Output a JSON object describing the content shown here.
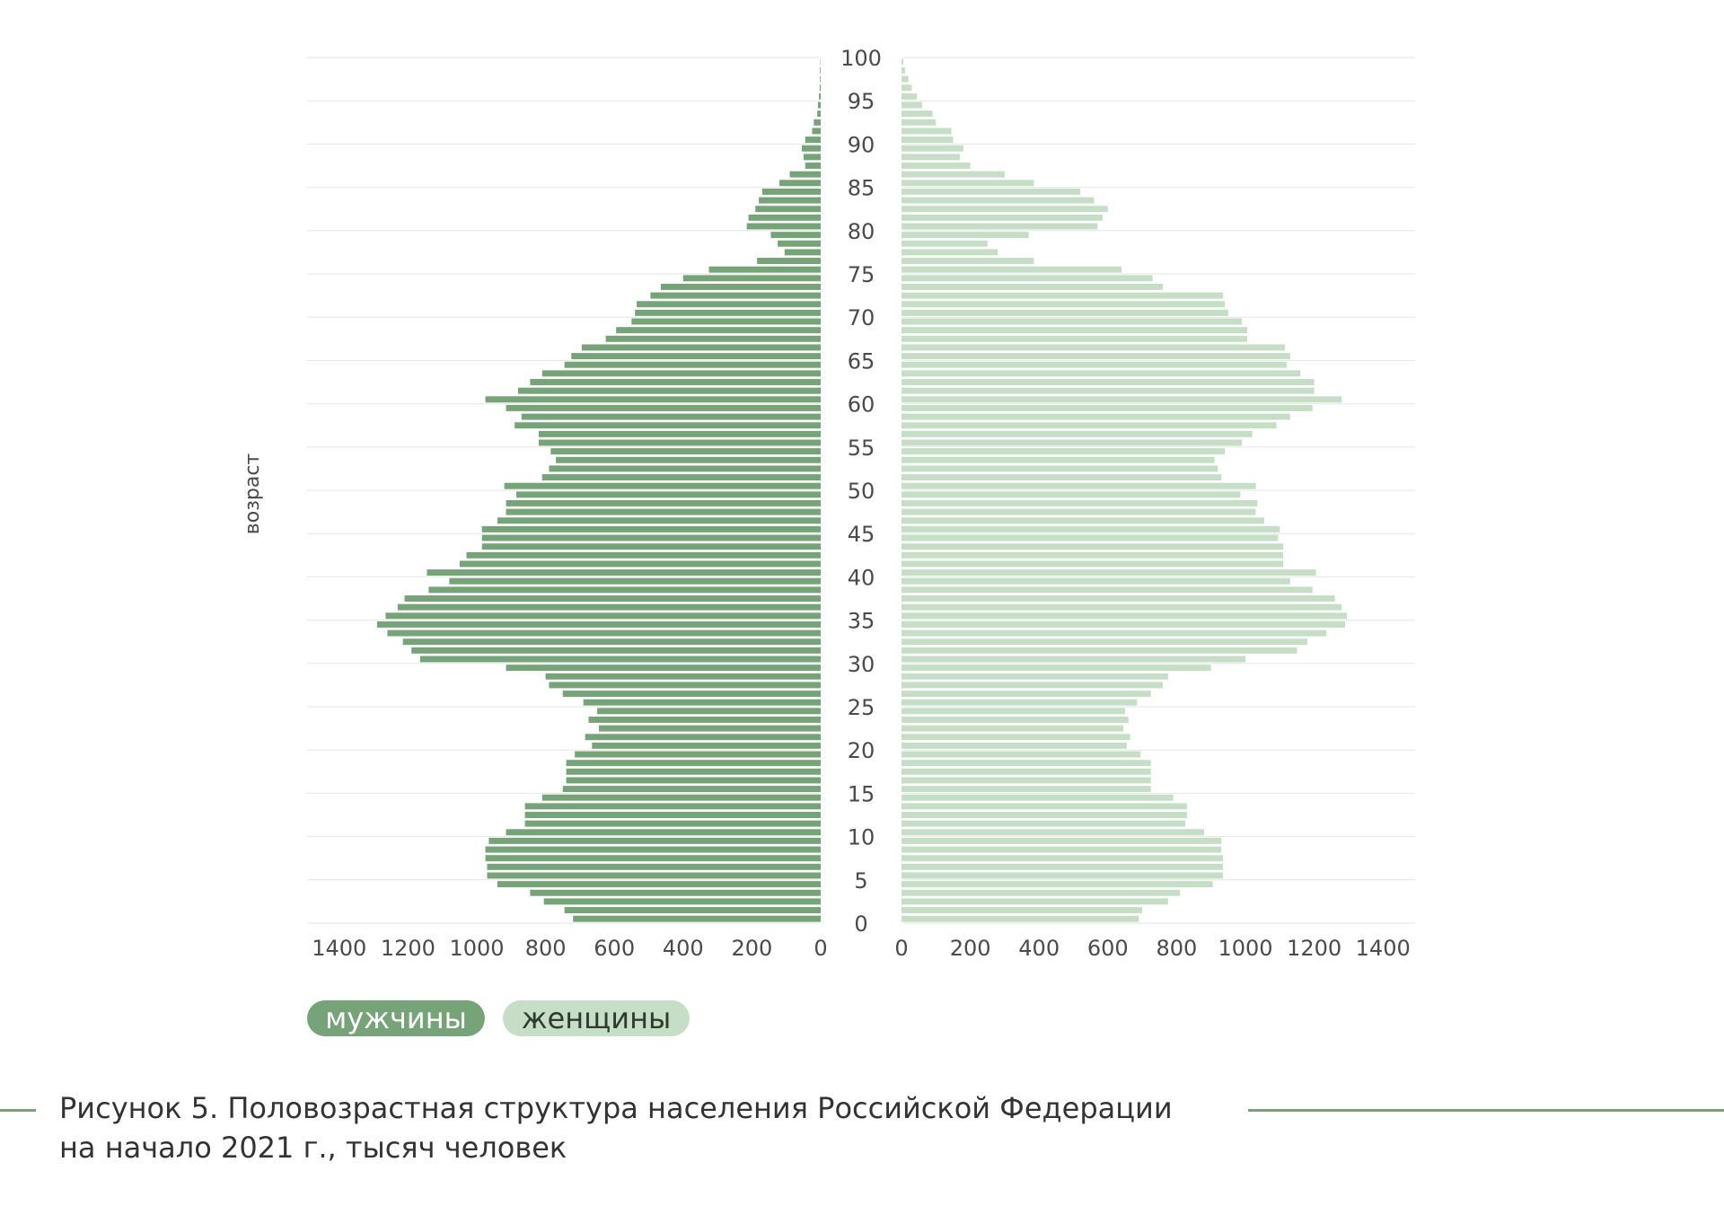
{
  "chart_data": {
    "type": "bar",
    "orientation": "horizontal-pyramid",
    "ylabel": "возраст",
    "age_ticks": [
      "0",
      "5",
      "10",
      "15",
      "20",
      "25",
      "30",
      "35",
      "40",
      "45",
      "50",
      "55",
      "60",
      "65",
      "70",
      "75",
      "80",
      "85",
      "90",
      "95",
      "100"
    ],
    "x_ticks_left": [
      "1400",
      "1200",
      "1000",
      "800",
      "600",
      "400",
      "200",
      "0"
    ],
    "x_ticks_right": [
      "0",
      "200",
      "400",
      "600",
      "800",
      "1000",
      "1200",
      "1400"
    ],
    "xlim": [
      0,
      1500
    ],
    "ages": [
      0,
      1,
      2,
      3,
      4,
      5,
      6,
      7,
      8,
      9,
      10,
      11,
      12,
      13,
      14,
      15,
      16,
      17,
      18,
      19,
      20,
      21,
      22,
      23,
      24,
      25,
      26,
      27,
      28,
      29,
      30,
      31,
      32,
      33,
      34,
      35,
      36,
      37,
      38,
      39,
      40,
      41,
      42,
      43,
      44,
      45,
      46,
      47,
      48,
      49,
      50,
      51,
      52,
      53,
      54,
      55,
      56,
      57,
      58,
      59,
      60,
      61,
      62,
      63,
      64,
      65,
      66,
      67,
      68,
      69,
      70,
      71,
      72,
      73,
      74,
      75,
      76,
      77,
      78,
      79,
      80,
      81,
      82,
      83,
      84,
      85,
      86,
      87,
      88,
      89,
      90,
      91,
      92,
      93,
      94,
      95,
      96,
      97,
      98,
      99
    ],
    "series": [
      {
        "name": "мужчины",
        "color": "#77a379",
        "values": [
          720,
          745,
          805,
          845,
          940,
          970,
          970,
          975,
          975,
          965,
          915,
          860,
          860,
          860,
          810,
          750,
          740,
          740,
          740,
          715,
          665,
          685,
          645,
          675,
          650,
          690,
          750,
          790,
          800,
          915,
          1165,
          1190,
          1215,
          1260,
          1290,
          1265,
          1230,
          1210,
          1140,
          1080,
          1145,
          1050,
          1030,
          985,
          985,
          985,
          940,
          915,
          915,
          885,
          920,
          810,
          790,
          770,
          785,
          820,
          820,
          890,
          870,
          915,
          975,
          880,
          845,
          810,
          745,
          725,
          695,
          625,
          595,
          550,
          540,
          535,
          495,
          465,
          400,
          325,
          185,
          105,
          125,
          145,
          215,
          210,
          190,
          180,
          170,
          120,
          90,
          45,
          50,
          55,
          45,
          25,
          20,
          10,
          8,
          5,
          3,
          2,
          2,
          1
        ]
      },
      {
        "name": "женщины",
        "color": "#c6dec6",
        "values": [
          690,
          700,
          775,
          810,
          905,
          935,
          935,
          935,
          930,
          930,
          880,
          825,
          830,
          830,
          790,
          725,
          725,
          725,
          725,
          695,
          655,
          665,
          645,
          660,
          650,
          685,
          725,
          760,
          775,
          900,
          1000,
          1150,
          1180,
          1235,
          1290,
          1295,
          1280,
          1260,
          1195,
          1130,
          1205,
          1110,
          1110,
          1110,
          1095,
          1100,
          1055,
          1030,
          1035,
          985,
          1030,
          930,
          920,
          910,
          940,
          990,
          1020,
          1090,
          1130,
          1195,
          1280,
          1200,
          1200,
          1160,
          1120,
          1130,
          1115,
          1005,
          1005,
          990,
          950,
          940,
          935,
          760,
          730,
          640,
          385,
          280,
          250,
          370,
          570,
          585,
          600,
          560,
          520,
          385,
          300,
          200,
          170,
          180,
          150,
          145,
          100,
          90,
          60,
          45,
          30,
          20,
          10,
          5
        ]
      }
    ]
  },
  "legend": {
    "men_label": "мужчины",
    "women_label": "женщины"
  },
  "caption": {
    "line1": "Рисунок 5. Половозрастная структура населения Российской Федерации",
    "line2": "на начало 2021 г., тысяч человек"
  },
  "colors": {
    "men": "#77a379",
    "women": "#c6dec6",
    "grid": "#e6e6e6",
    "rule": "#77a379"
  }
}
